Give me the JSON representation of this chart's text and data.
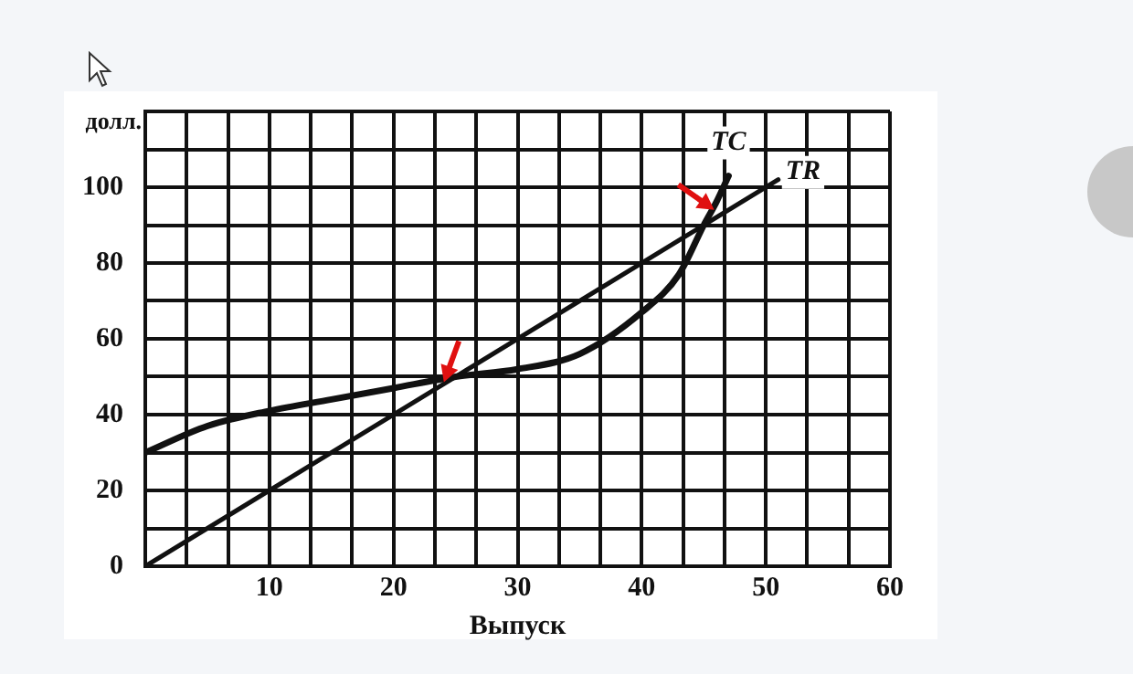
{
  "chart_data": {
    "type": "line",
    "xlabel": "Выпуск",
    "ylabel": "долл.",
    "xlim": [
      0,
      60
    ],
    "ylim": [
      0,
      120
    ],
    "xticks": [
      {
        "value": 0,
        "label": null
      },
      {
        "value": 3.33,
        "label": null
      },
      {
        "value": 6.67,
        "label": null
      },
      10,
      {
        "value": 13.33,
        "label": null
      },
      {
        "value": 16.67,
        "label": null
      },
      20,
      {
        "value": 23.33,
        "label": null
      },
      {
        "value": 26.67,
        "label": null
      },
      30,
      {
        "value": 33.33,
        "label": null
      },
      {
        "value": 36.67,
        "label": null
      },
      40,
      {
        "value": 43.33,
        "label": null
      },
      {
        "value": 46.67,
        "label": null
      },
      50,
      {
        "value": 53.33,
        "label": null
      },
      {
        "value": 56.67,
        "label": null
      },
      60
    ],
    "yticks": [
      0,
      {
        "value": 10,
        "label": null
      },
      20,
      {
        "value": 30,
        "label": null
      },
      40,
      {
        "value": 50,
        "label": null
      },
      60,
      {
        "value": 70,
        "label": null
      },
      80,
      {
        "value": 90,
        "label": null
      },
      100,
      {
        "value": 110,
        "label": null
      },
      {
        "value": 120,
        "label": null
      }
    ],
    "grid": true,
    "legend": false,
    "marker": "none",
    "series": [
      {
        "name": "TC",
        "color": "#111111",
        "x": [
          0,
          5,
          10,
          15,
          20,
          25,
          30,
          35,
          40,
          43,
          45,
          46,
          47
        ],
        "values": [
          30,
          37,
          41,
          44,
          47,
          50,
          52,
          56,
          67,
          77,
          90,
          96,
          103
        ]
      },
      {
        "name": "TR",
        "color": "#111111",
        "x": [
          0,
          51
        ],
        "values": [
          0,
          102
        ]
      }
    ]
  }
}
